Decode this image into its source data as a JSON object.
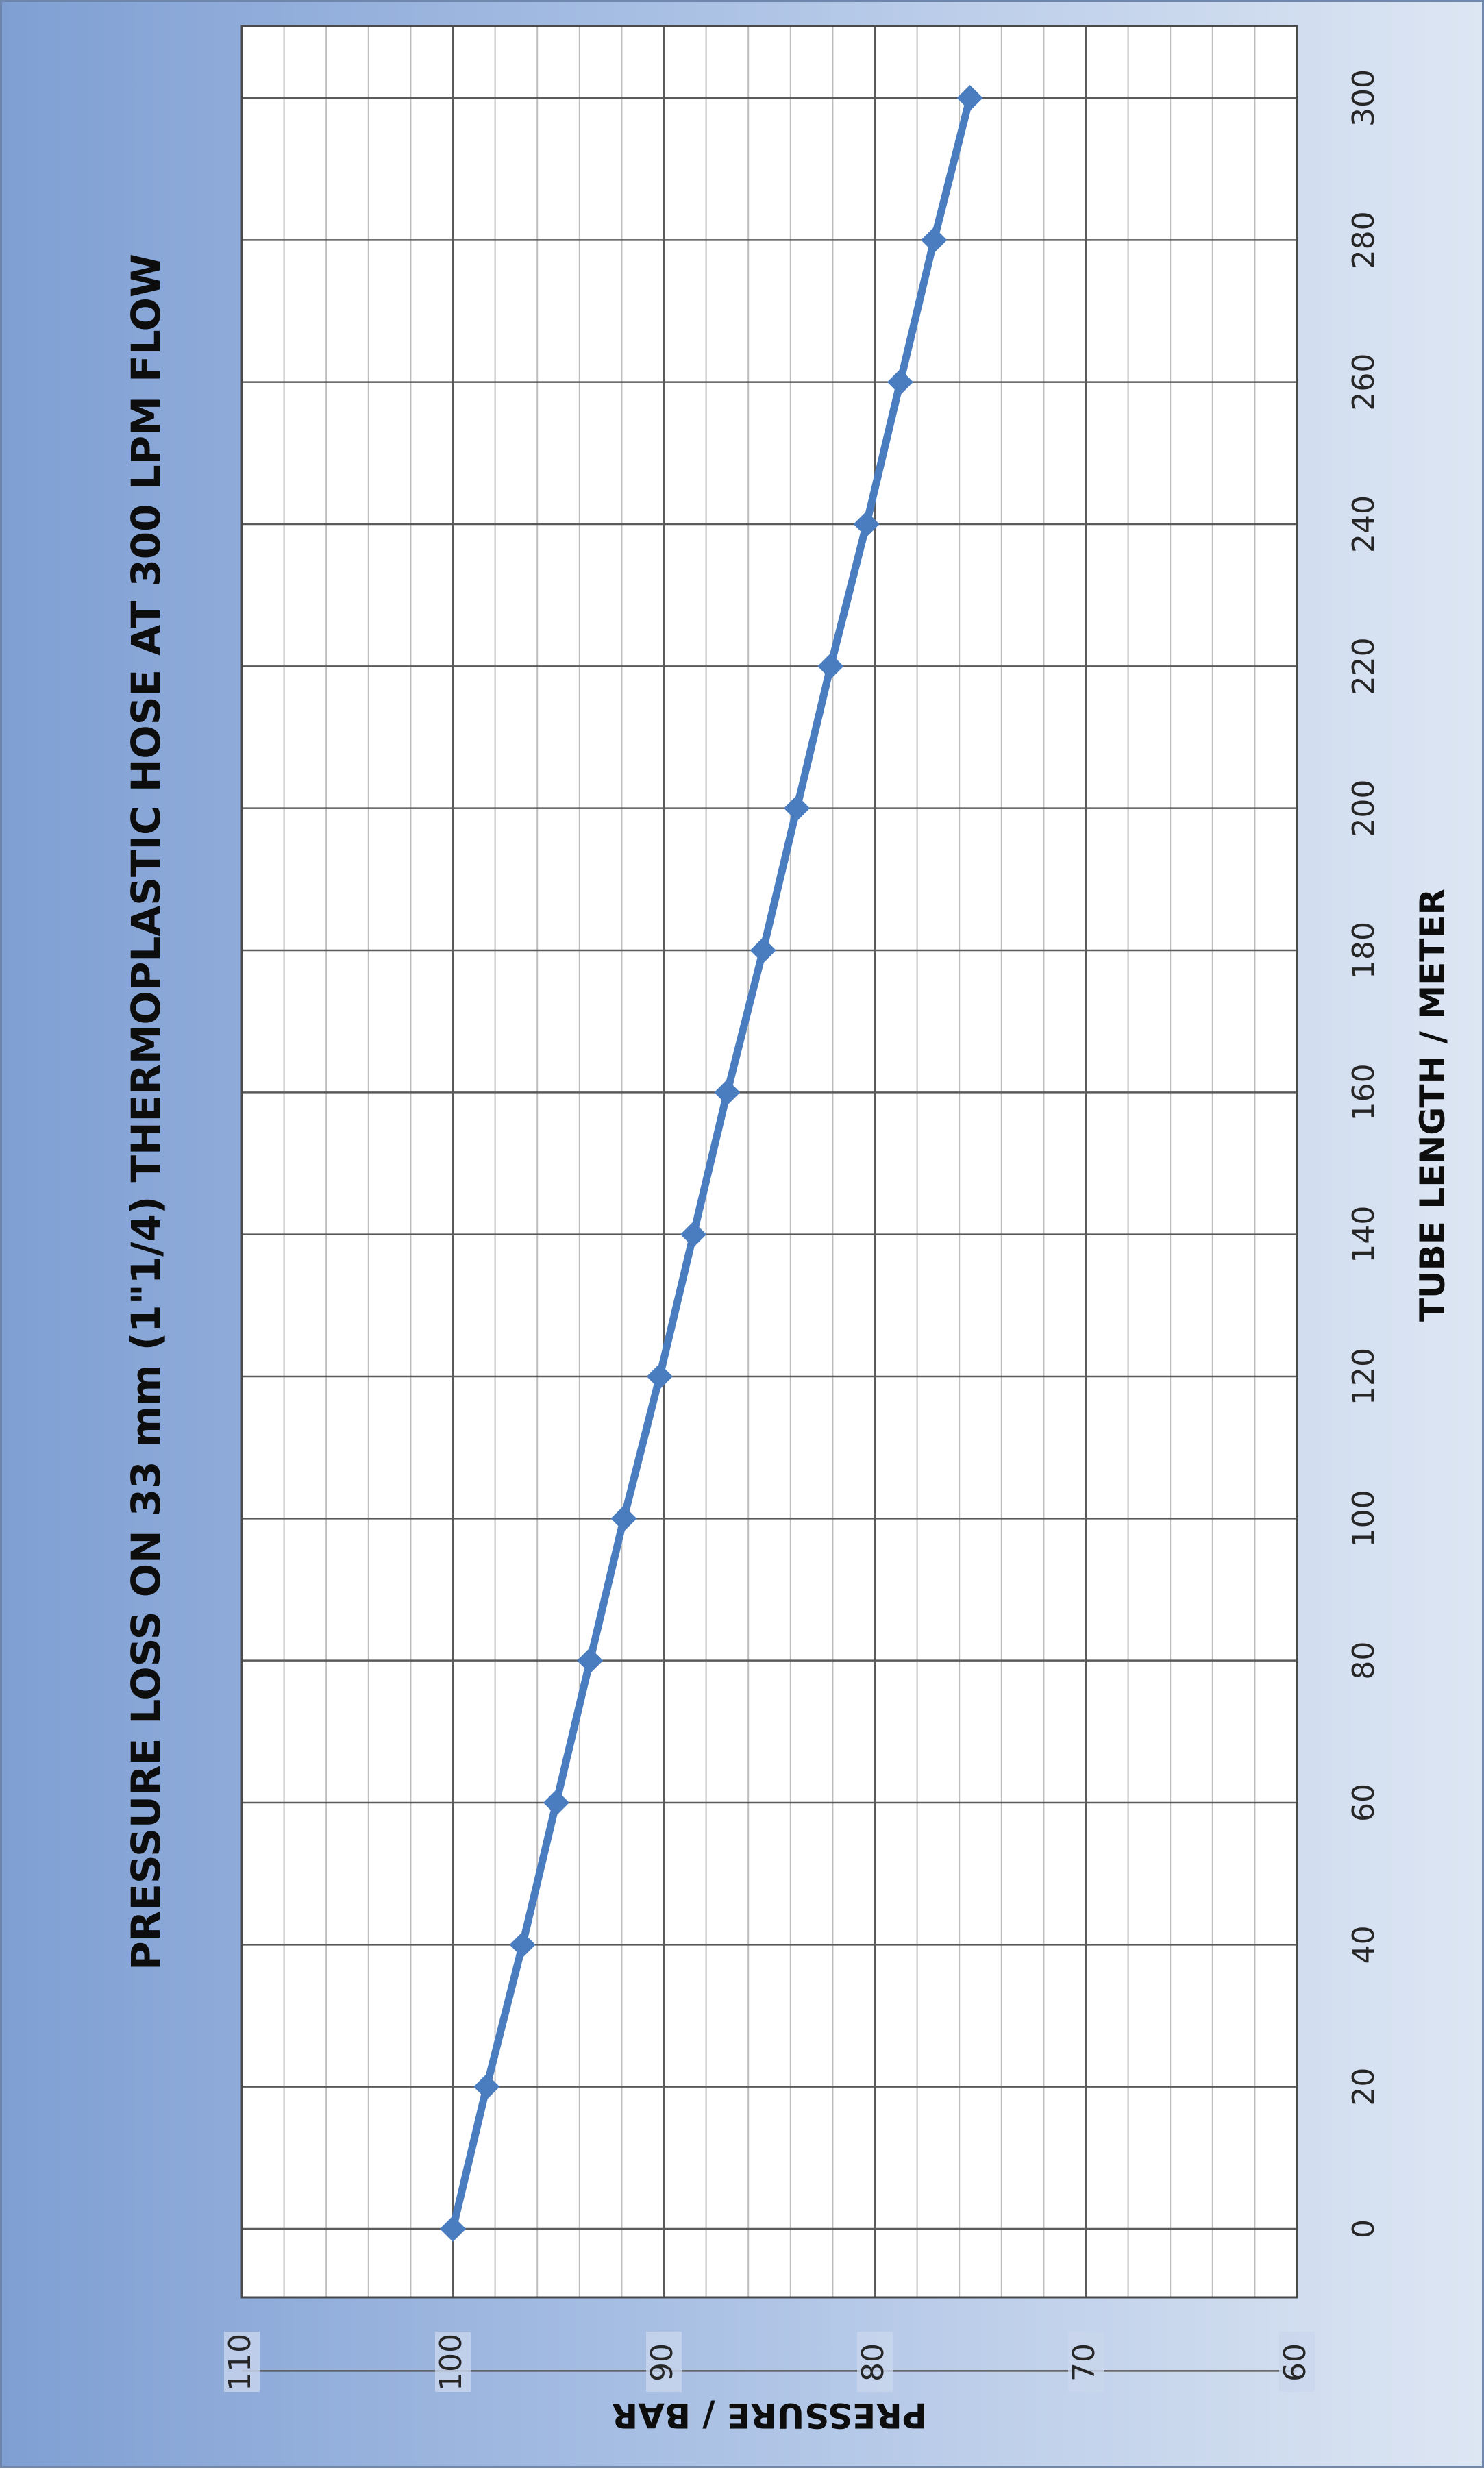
{
  "chart_data": {
    "type": "line",
    "title": "PRESSURE LOSS ON 33 mm (1\"1/4) THERMOPLASTIC HOSE AT 300 LPM FLOW",
    "xlabel": "TUBE LENGTH / METER",
    "ylabel": "PRESSURE / BAR",
    "xlim": [
      0,
      300
    ],
    "ylim": [
      60,
      110
    ],
    "x_ticks": [
      "0",
      "20",
      "40",
      "60",
      "80",
      "100",
      "120",
      "140",
      "160",
      "180",
      "200",
      "220",
      "240",
      "260",
      "280",
      "300"
    ],
    "y_ticks": [
      "60",
      "70",
      "80",
      "90",
      "100",
      "110"
    ],
    "grid": true,
    "orientation": "rotated 90° clockwise",
    "series": [
      {
        "marker": "diamond",
        "color": "#4a7cc0",
        "x": [
          0,
          20,
          40,
          60,
          80,
          100,
          120,
          140,
          160,
          180,
          200,
          220,
          240,
          260,
          280,
          300
        ],
        "y": [
          100,
          98.4,
          96.7,
          95.1,
          93.5,
          91.9,
          90.2,
          88.6,
          87.0,
          85.3,
          83.7,
          82.1,
          80.4,
          78.8,
          77.2,
          75.5
        ]
      }
    ]
  }
}
